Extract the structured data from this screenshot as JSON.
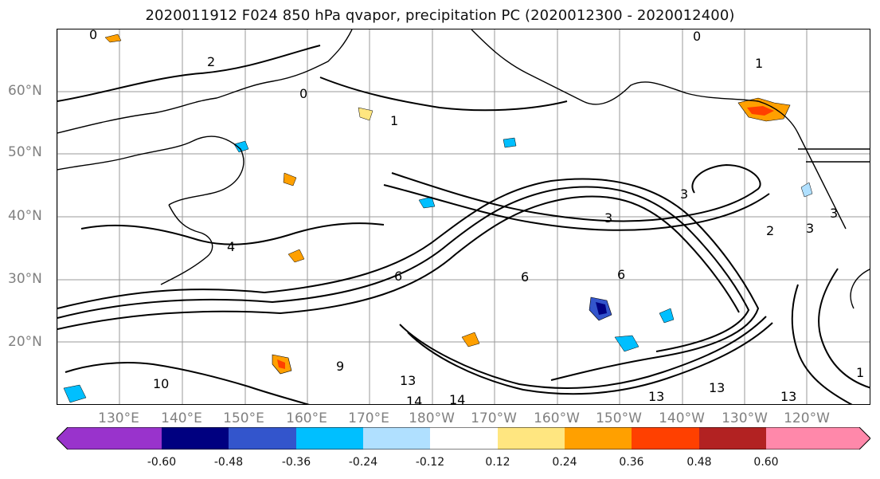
{
  "title": "2020011912 F024 850 hPa qvapor, precipitation PC (2020012300 - 2020012400)",
  "map": {
    "lat_labels": [
      "60°N",
      "50°N",
      "40°N",
      "30°N",
      "20°N"
    ],
    "lon_labels": [
      "130°E",
      "140°E",
      "150°E",
      "160°E",
      "170°E",
      "180°W",
      "170°W",
      "160°W",
      "150°W",
      "140°W",
      "130°W",
      "120°W"
    ],
    "contour_labels": [
      "0",
      "0",
      "0",
      "1",
      "1",
      "2",
      "3",
      "3",
      "3",
      "2",
      "3",
      "4",
      "6",
      "6",
      "6",
      "9",
      "10",
      "13",
      "13",
      "13",
      "14",
      "14",
      "13",
      "1"
    ],
    "coastline_color": "#000000",
    "contour_color": "#000000",
    "grid_color": "#9a9a9a"
  },
  "colorbar": {
    "ticks": [
      "-0.60",
      "-0.48",
      "-0.36",
      "-0.24",
      "-0.12",
      "0.12",
      "0.24",
      "0.36",
      "0.48",
      "0.60"
    ],
    "colors": [
      "#9933cc",
      "#000080",
      "#3355cc",
      "#00bfff",
      "#b0e0ff",
      "#ffffff",
      "#ffe680",
      "#ffa000",
      "#ff4000",
      "#b22222",
      "#ff88aa",
      "#ff88aa"
    ]
  }
}
